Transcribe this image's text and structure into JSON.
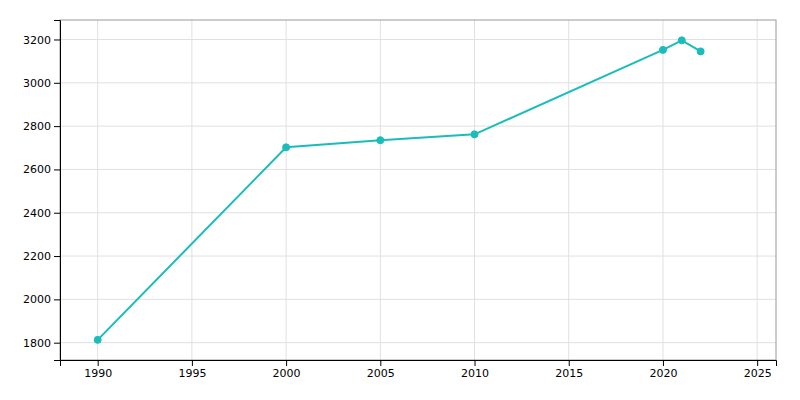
{
  "chart_data": {
    "type": "line",
    "x": [
      1990,
      2000,
      2005,
      2010,
      2020,
      2021,
      2022
    ],
    "values": [
      1813,
      2702,
      2735,
      2762,
      3152,
      3196,
      3145
    ],
    "color": "#1abcbc",
    "marker": "circle",
    "xlim": [
      1988,
      2026
    ],
    "ylim": [
      1720,
      3290
    ],
    "xticks": [
      1990,
      1995,
      2000,
      2005,
      2010,
      2015,
      2020,
      2025
    ],
    "yticks": [
      1800,
      2000,
      2200,
      2400,
      2600,
      2800,
      3000,
      3200
    ],
    "grid": true
  }
}
